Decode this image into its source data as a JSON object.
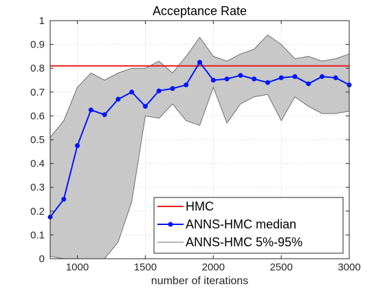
{
  "chart_data": {
    "type": "line",
    "title": "Acceptance Rate",
    "xlabel": "number of iterations",
    "ylabel": "",
    "xlim": [
      800,
      3000
    ],
    "ylim": [
      0,
      1
    ],
    "x_ticks": [
      1000,
      1500,
      2000,
      2500,
      3000
    ],
    "x_tick_labels": [
      "1000",
      "1500",
      "2000",
      "2500",
      "3000"
    ],
    "y_ticks": [
      0,
      0.1,
      0.2,
      0.3,
      0.4,
      0.5,
      0.6,
      0.7,
      0.8,
      0.9,
      1
    ],
    "y_tick_labels": [
      "0",
      "0.1",
      "0.2",
      "0.3",
      "0.4",
      "0.5",
      "0.6",
      "0.7",
      "0.8",
      "0.9",
      "1"
    ],
    "grid": true,
    "legend_position": "bottom-right",
    "x": [
      800,
      900,
      1000,
      1100,
      1200,
      1300,
      1400,
      1500,
      1600,
      1700,
      1800,
      1900,
      2000,
      2100,
      2200,
      2300,
      2400,
      2500,
      2600,
      2700,
      2800,
      2900,
      3000
    ],
    "series": [
      {
        "name": "HMC",
        "kind": "hline",
        "value": 0.81,
        "color": "#e8191d"
      },
      {
        "name": "ANNS-HMC median",
        "kind": "line",
        "color": "#0015ff",
        "values": [
          0.175,
          0.25,
          0.475,
          0.625,
          0.605,
          0.67,
          0.7,
          0.64,
          0.705,
          0.715,
          0.73,
          0.825,
          0.75,
          0.755,
          0.77,
          0.755,
          0.74,
          0.76,
          0.765,
          0.735,
          0.765,
          0.76,
          0.73
        ]
      },
      {
        "name": "ANNS-HMC 5%-95%",
        "kind": "band",
        "fill": "#c8c8c8",
        "stroke": "#6e6e6e",
        "upper": [
          0.51,
          0.58,
          0.72,
          0.78,
          0.75,
          0.78,
          0.8,
          0.8,
          0.83,
          0.78,
          0.85,
          0.93,
          0.85,
          0.83,
          0.86,
          0.88,
          0.94,
          0.9,
          0.84,
          0.85,
          0.83,
          0.84,
          0.86
        ],
        "lower": [
          0.01,
          0.0,
          0.0,
          0.0,
          0.0,
          0.07,
          0.24,
          0.6,
          0.59,
          0.65,
          0.58,
          0.56,
          0.72,
          0.57,
          0.65,
          0.68,
          0.69,
          0.58,
          0.68,
          0.64,
          0.61,
          0.61,
          0.62
        ]
      }
    ]
  }
}
